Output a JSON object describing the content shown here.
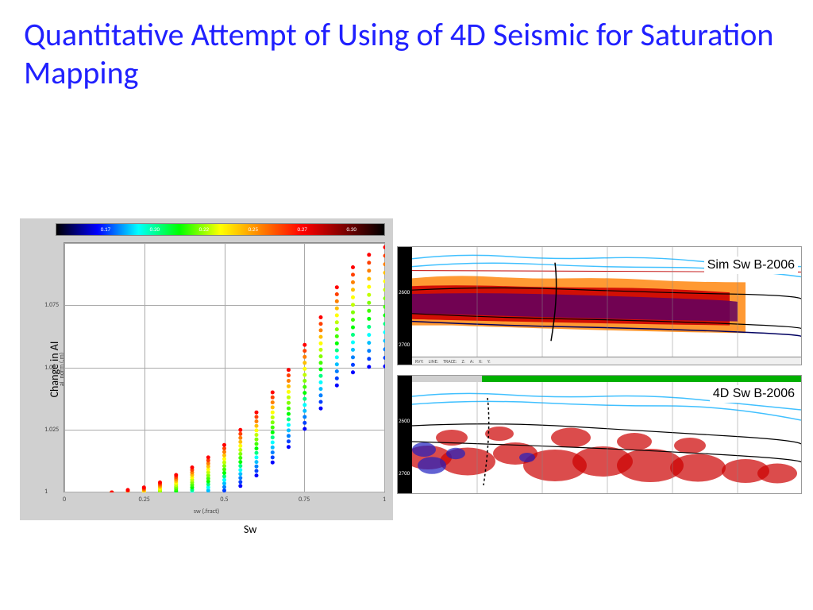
{
  "title": {
    "text": "Quantitative Attempt of Using of 4D Seismic for Saturation Mapping",
    "color": "#2020ff",
    "fontsize": 40
  },
  "scatter": {
    "type": "scatter",
    "background_color": "#ffffff",
    "frame_color": "#d0d0d0",
    "grid_color": "#aaaaaa",
    "xlim": [
      0,
      1
    ],
    "ylim": [
      1.0,
      1.1
    ],
    "xticks": [
      0,
      0.25,
      0.5,
      0.75,
      1
    ],
    "yticks": [
      1,
      1.025,
      1.05,
      1.075
    ],
    "xlabel_inner": "sw (.fract)",
    "xlabel_outer": "Sw",
    "ylabel_inner": "ai_norm (.m)",
    "ylabel_outer": "Change in AI",
    "tick_fontsize": 8,
    "label_fontsize": 14,
    "colorbar_ticks": [
      "0.17",
      "0.20",
      "0.22",
      "0.25",
      "0.27",
      "0.30"
    ],
    "colorbar_positions": [
      15,
      30,
      45,
      60,
      75,
      90
    ],
    "x_points": [
      0.15,
      0.2,
      0.25,
      0.3,
      0.35,
      0.4,
      0.45,
      0.5,
      0.55,
      0.6,
      0.65,
      0.7,
      0.75,
      0.8,
      0.85,
      0.9,
      0.95,
      1.0
    ],
    "band_offsets": [
      0.0,
      0.0004,
      0.0008,
      0.0012,
      0.0016,
      0.002,
      0.0024,
      0.0028,
      0.0032,
      0.0036,
      0.004,
      0.0044,
      0.0048,
      0.0052,
      0.0056
    ],
    "band_colors": [
      "#ff0000",
      "#ff4000",
      "#ff8000",
      "#ffbf00",
      "#ffff00",
      "#bfff00",
      "#80ff00",
      "#40ff00",
      "#00ff00",
      "#00ff80",
      "#00ffff",
      "#00bfff",
      "#0080ff",
      "#0040ff",
      "#0000ff"
    ],
    "base_curve": [
      1.0,
      1.001,
      1.002,
      1.004,
      1.007,
      1.01,
      1.014,
      1.019,
      1.025,
      1.032,
      1.04,
      1.049,
      1.059,
      1.07,
      1.082,
      1.09,
      1.095,
      1.098
    ],
    "marker_size": 5
  },
  "sections": {
    "sim": {
      "label": "Sim Sw B-2006",
      "depth_ticks": [
        "2600",
        "2700"
      ],
      "statusbar": [
        "RVY:",
        "LINE:",
        "TRACE:",
        "Z:",
        "A:",
        "X:",
        "Y:"
      ]
    },
    "fourd": {
      "label": "4D Sw B-2006",
      "depth_ticks": [
        "2600",
        "2700"
      ]
    }
  }
}
